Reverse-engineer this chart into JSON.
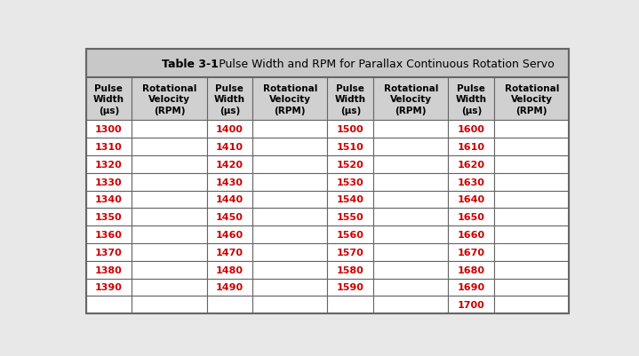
{
  "title_bold": "Table 3-1",
  "title_normal": ": Pulse Width and RPM for Parallax Continuous Rotation Servo",
  "header_bg": "#d0d0d0",
  "title_bg": "#c8c8c8",
  "body_bg": "#ffffff",
  "header_text_color": "#000000",
  "pulse_width_color": "#cc0000",
  "col1_pw": [
    "1300",
    "1310",
    "1320",
    "1330",
    "1340",
    "1350",
    "1360",
    "1370",
    "1380",
    "1390",
    ""
  ],
  "col3_pw": [
    "1400",
    "1410",
    "1420",
    "1430",
    "1440",
    "1450",
    "1460",
    "1470",
    "1480",
    "1490",
    ""
  ],
  "col5_pw": [
    "1500",
    "1510",
    "1520",
    "1530",
    "1540",
    "1550",
    "1560",
    "1570",
    "1580",
    "1590",
    ""
  ],
  "col7_pw": [
    "1600",
    "1610",
    "1620",
    "1630",
    "1640",
    "1650",
    "1660",
    "1670",
    "1680",
    "1690",
    "1700"
  ],
  "num_data_rows": 11,
  "fig_width": 7.19,
  "fig_height": 4.02,
  "dpi": 100
}
